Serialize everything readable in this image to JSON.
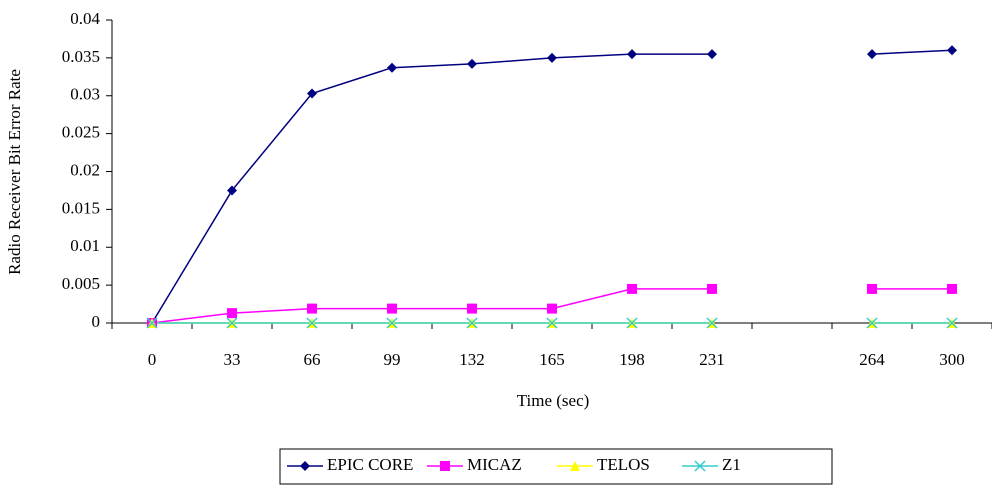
{
  "chart_data": {
    "type": "line",
    "x_label": "Time (sec)",
    "y_label": "Radio Receiver Bit Error Rate",
    "categories": [
      "0",
      "33",
      "66",
      "99",
      "132",
      "165",
      "198",
      "231",
      null,
      "264",
      "300"
    ],
    "series": [
      {
        "name": "EPIC CORE",
        "color": "#000080",
        "marker": "diamond",
        "values": [
          0,
          0.0175,
          0.0303,
          0.0337,
          0.0342,
          0.035,
          0.0355,
          0.0355,
          null,
          0.0355,
          0.036
        ]
      },
      {
        "name": "MICAZ",
        "color": "#ff00ff",
        "marker": "square",
        "values": [
          0,
          0.0013,
          0.0019,
          0.0019,
          0.0019,
          0.0019,
          0.0045,
          0.0045,
          null,
          0.0045,
          0.0045
        ]
      },
      {
        "name": "TELOS",
        "color": "#ffff00",
        "marker": "triangle",
        "values": [
          0,
          0,
          0,
          0,
          0,
          0,
          0,
          0,
          null,
          0,
          0
        ]
      },
      {
        "name": "Z1",
        "color": "#33cccc",
        "marker": "x",
        "values": [
          0,
          0,
          0,
          0,
          0,
          0,
          0,
          0,
          null,
          0,
          0
        ]
      }
    ],
    "ylim": [
      0,
      0.04
    ],
    "yticks": [
      0,
      0.005,
      0.01,
      0.015,
      0.02,
      0.025,
      0.03,
      0.035,
      0.04
    ],
    "legend": "bottom"
  }
}
